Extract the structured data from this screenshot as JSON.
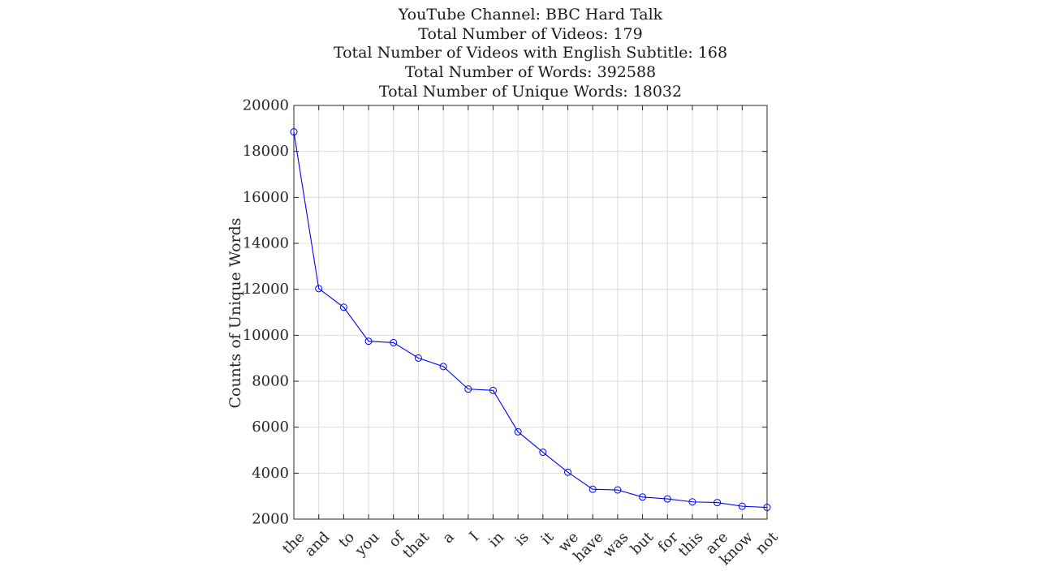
{
  "chart_data": {
    "type": "line",
    "title_lines": [
      "YouTube Channel: BBC Hard Talk",
      "Total Number of Videos: 179",
      "Total Number of Videos with English Subtitle: 168",
      "Total Number of Words: 392588",
      "Total Number of Unique Words: 18032"
    ],
    "xlabel": "",
    "ylabel": "Counts of Unique Words",
    "categories": [
      "the",
      "and",
      "to",
      "you",
      "of",
      "that",
      "a",
      "I",
      "in",
      "is",
      "it",
      "we",
      "have",
      "was",
      "but",
      "for",
      "this",
      "are",
      "know",
      "not"
    ],
    "series": [
      {
        "values": [
          18850,
          12030,
          11220,
          9740,
          9680,
          9010,
          8640,
          7660,
          7600,
          5800,
          4910,
          4040,
          3300,
          3270,
          2960,
          2880,
          2750,
          2720,
          2560,
          2510
        ],
        "color": "#0000ff",
        "marker": "circle"
      }
    ],
    "ylim": [
      2000,
      20000
    ],
    "yticks": [
      "2000",
      "4000",
      "6000",
      "8000",
      "10000",
      "12000",
      "14000",
      "16000",
      "18000",
      "20000"
    ],
    "grid": true,
    "box": true
  }
}
